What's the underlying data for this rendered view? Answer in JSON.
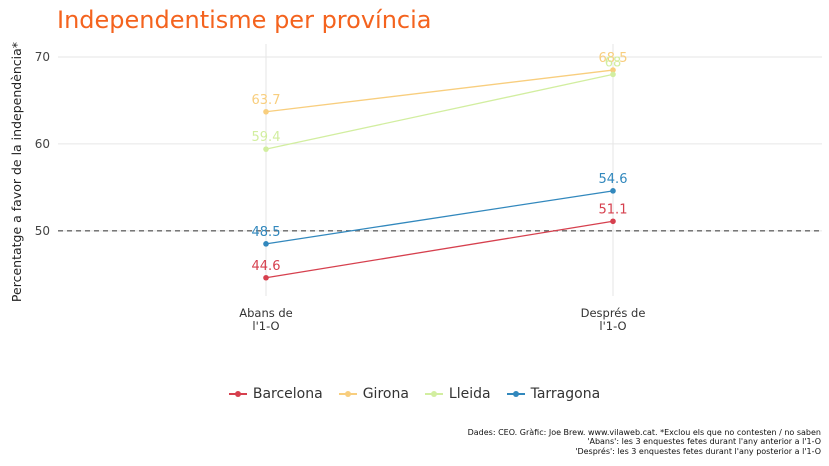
{
  "title": "Independentisme per província",
  "chart_data": {
    "type": "line",
    "title": "Independentisme per província",
    "ylabel": "Percentatge a favor de la independència*",
    "xlabel": "",
    "categories": [
      [
        "Abans de",
        "l'1-O"
      ],
      [
        "Després de",
        "l'1-O"
      ]
    ],
    "ylim": [
      42.5,
      71.5
    ],
    "yticks": [
      50,
      60,
      70
    ],
    "reference_line": {
      "y": 50,
      "style": "dashed"
    },
    "grid": true,
    "legend_position": "bottom",
    "series": [
      {
        "name": "Barcelona",
        "color": "#D6404E",
        "values": [
          44.6,
          51.1
        ],
        "labels": [
          "44.6",
          "51.1"
        ]
      },
      {
        "name": "Girona",
        "color": "#F8CE7E",
        "values": [
          63.7,
          68.5
        ],
        "labels": [
          "63.7",
          "68.5"
        ]
      },
      {
        "name": "Lleida",
        "color": "#D2EEA0",
        "values": [
          59.4,
          68
        ],
        "labels": [
          "59.4",
          "68"
        ]
      },
      {
        "name": "Tarragona",
        "color": "#3288BD",
        "values": [
          48.5,
          54.6
        ],
        "labels": [
          "48.5",
          "54.6"
        ]
      }
    ]
  },
  "caption": [
    "Dades: CEO. Gràfic: Joe Brew. www.vilaweb.cat. *Exclou els que no contesten / no saben",
    "'Abans': les 3 enquestes fetes durant l'any anterior a l'1-O",
    "'Després': les 3 enquestes fetes durant l'any posterior a l'1-O"
  ]
}
